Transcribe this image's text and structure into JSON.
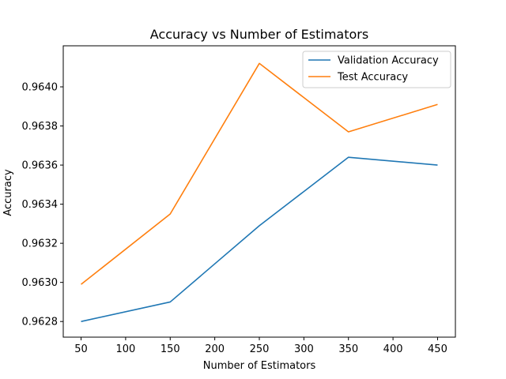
{
  "chart_data": {
    "type": "line",
    "title": "Accuracy vs Number of Estimators",
    "xlabel": "Number of Estimators",
    "ylabel": "Accuracy",
    "x": [
      50,
      150,
      250,
      350,
      450
    ],
    "xticks": [
      50,
      100,
      150,
      200,
      250,
      300,
      350,
      400,
      450
    ],
    "yticks": [
      0.9628,
      0.963,
      0.9632,
      0.9634,
      0.9636,
      0.9638,
      0.964
    ],
    "ytick_labels": [
      "0.9628",
      "0.9630",
      "0.9632",
      "0.9634",
      "0.9636",
      "0.9638",
      "0.9640"
    ],
    "xlim": [
      30,
      470
    ],
    "ylim": [
      0.96272,
      0.96421
    ],
    "grid": false,
    "legend": "top-right",
    "series": [
      {
        "name": "Validation Accuracy",
        "color": "#1f77b4",
        "values": [
          0.9628,
          0.9629,
          0.96329,
          0.96364,
          0.9636
        ]
      },
      {
        "name": "Test Accuracy",
        "color": "#ff7f0e",
        "values": [
          0.96299,
          0.96335,
          0.96412,
          0.96377,
          0.96391
        ]
      }
    ]
  }
}
